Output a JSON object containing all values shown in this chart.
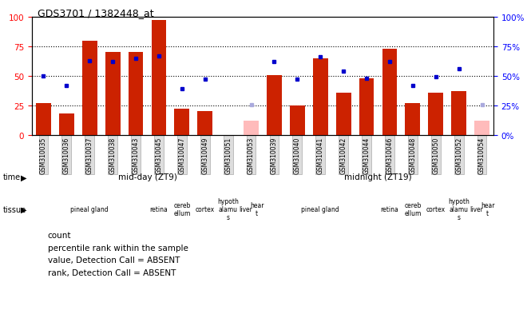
{
  "title": "GDS3701 / 1382448_at",
  "samples": [
    "GSM310035",
    "GSM310036",
    "GSM310037",
    "GSM310038",
    "GSM310043",
    "GSM310045",
    "GSM310047",
    "GSM310049",
    "GSM310051",
    "GSM310053",
    "GSM310039",
    "GSM310040",
    "GSM310041",
    "GSM310042",
    "GSM310044",
    "GSM310046",
    "GSM310048",
    "GSM310050",
    "GSM310052",
    "GSM310054"
  ],
  "count_values": [
    27,
    18,
    80,
    70,
    70,
    97,
    22,
    20,
    0,
    12,
    51,
    25,
    65,
    36,
    48,
    73,
    27,
    36,
    37,
    12
  ],
  "count_absent": [
    false,
    false,
    false,
    false,
    false,
    false,
    false,
    false,
    false,
    true,
    false,
    false,
    false,
    false,
    false,
    false,
    false,
    false,
    false,
    true
  ],
  "rank_values": [
    50,
    42,
    63,
    62,
    65,
    67,
    39,
    47,
    0,
    26,
    62,
    47,
    66,
    54,
    48,
    62,
    42,
    49,
    56,
    26
  ],
  "rank_absent": [
    false,
    false,
    false,
    false,
    false,
    false,
    false,
    false,
    false,
    true,
    false,
    false,
    false,
    false,
    false,
    false,
    false,
    false,
    false,
    true
  ],
  "bar_color_normal": "#cc2200",
  "bar_color_absent": "#ffbbbb",
  "dot_color_normal": "#0000cc",
  "dot_color_absent": "#aaaadd",
  "ylim": [
    0,
    100
  ],
  "yticks": [
    0,
    25,
    50,
    75,
    100
  ],
  "tissues": [
    {
      "label": "pineal gland",
      "n": 5,
      "color": "#ffaaff"
    },
    {
      "label": "retina",
      "n": 1,
      "color": "#ffffff"
    },
    {
      "label": "cereb\nellum",
      "n": 1,
      "color": "#ffaaff"
    },
    {
      "label": "cortex",
      "n": 1,
      "color": "#ffffff"
    },
    {
      "label": "hypoth\nalamu\ns",
      "n": 1,
      "color": "#ffaaff"
    },
    {
      "label": "liver",
      "n": 0.5,
      "color": "#ffffff"
    },
    {
      "label": "hear\nt",
      "n": 0.5,
      "color": "#ffaaff"
    }
  ]
}
